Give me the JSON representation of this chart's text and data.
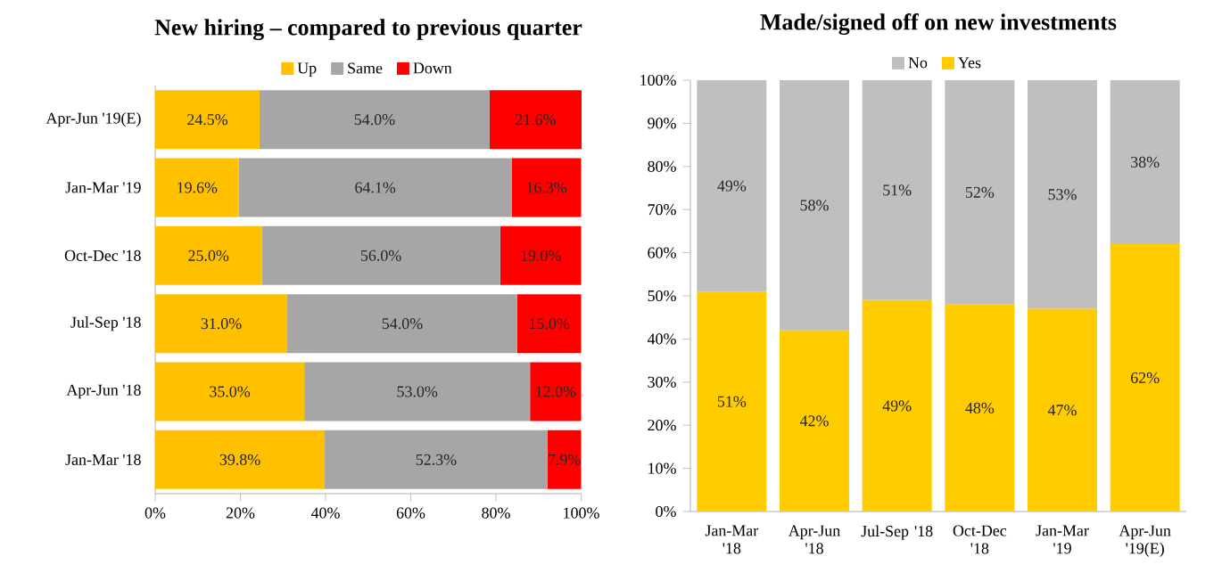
{
  "chart_data": [
    {
      "type": "bar",
      "orientation": "horizontal",
      "stacked": true,
      "title": "New hiring – compared to previous quarter",
      "categories": [
        "Apr-Jun '19(E)",
        "Jan-Mar '19",
        "Oct-Dec '18",
        "Jul-Sep '18",
        "Apr-Jun '18",
        "Jan-Mar '18"
      ],
      "series": [
        {
          "name": "Up",
          "color": "#ffc000",
          "values": [
            24.5,
            19.6,
            25.0,
            31.0,
            35.0,
            39.8
          ],
          "value_labels": [
            "24.5%",
            "19.6%",
            "25.0%",
            "31.0%",
            "35.0%",
            "39.8%"
          ]
        },
        {
          "name": "Same",
          "color": "#a6a6a6",
          "values": [
            54.0,
            64.1,
            56.0,
            54.0,
            53.0,
            52.3
          ],
          "value_labels": [
            "54.0%",
            "64.1%",
            "56.0%",
            "54.0%",
            "53.0%",
            "52.3%"
          ]
        },
        {
          "name": "Down",
          "color": "#ff0000",
          "values": [
            21.6,
            16.3,
            19.0,
            15.0,
            12.0,
            7.9
          ],
          "value_labels": [
            "21.6%",
            "16.3%",
            "19.0%",
            "15.0%",
            "12.0%",
            "7.9%"
          ]
        }
      ],
      "xlim": [
        0,
        100.1
      ],
      "xticks": [
        {
          "value": 0,
          "label": "0%"
        },
        {
          "value": 20,
          "label": "20%"
        },
        {
          "value": 40,
          "label": "40%"
        },
        {
          "value": 60,
          "label": "60%"
        },
        {
          "value": 80,
          "label": "80%"
        },
        {
          "value": 100,
          "label": "100%"
        }
      ],
      "legend": "top"
    },
    {
      "type": "bar",
      "stacked": true,
      "title": "Made/signed off on new investments",
      "categories": [
        "Jan-Mar '18",
        "Apr-Jun '18",
        "Jul-Sep '18",
        "Oct-Dec '18",
        "Jan-Mar '19",
        "Apr-Jun '19(E)"
      ],
      "series": [
        {
          "name": "Yes",
          "color": "#ffcc00",
          "values": [
            51,
            42,
            49,
            48,
            47,
            62
          ],
          "value_labels": [
            "51%",
            "42%",
            "49%",
            "48%",
            "47%",
            "62%"
          ]
        },
        {
          "name": "No",
          "color": "#bfbfbf",
          "values": [
            49,
            58,
            51,
            52,
            53,
            38
          ],
          "value_labels": [
            "49%",
            "58%",
            "51%",
            "52%",
            "53%",
            "38%"
          ]
        }
      ],
      "ylim": [
        0,
        100
      ],
      "yticks": [
        {
          "value": 0,
          "label": "0%"
        },
        {
          "value": 10,
          "label": "10%"
        },
        {
          "value": 20,
          "label": "20%"
        },
        {
          "value": 30,
          "label": "30%"
        },
        {
          "value": 40,
          "label": "40%"
        },
        {
          "value": 50,
          "label": "50%"
        },
        {
          "value": 60,
          "label": "60%"
        },
        {
          "value": 70,
          "label": "70%"
        },
        {
          "value": 80,
          "label": "80%"
        },
        {
          "value": 90,
          "label": "90%"
        },
        {
          "value": 100,
          "label": "100%"
        }
      ],
      "legend": "top"
    }
  ]
}
